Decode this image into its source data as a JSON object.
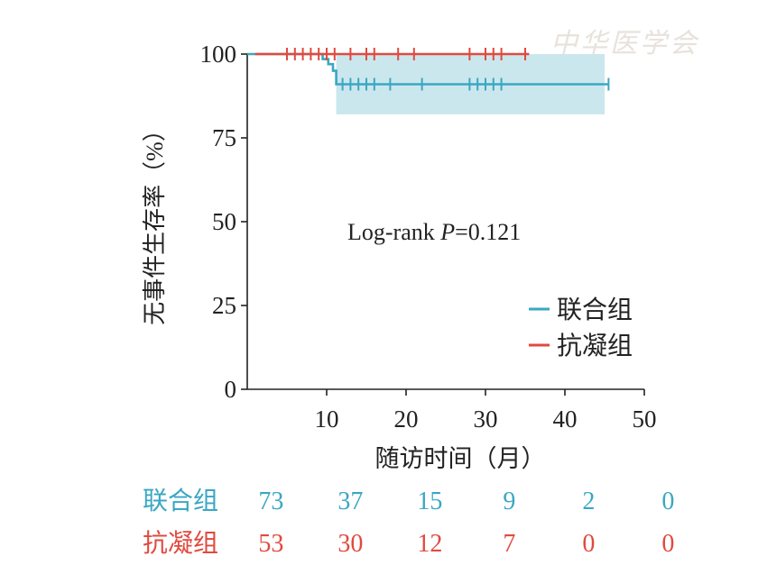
{
  "watermark": "中华医学会",
  "chart_data": {
    "type": "line",
    "chart_subtype": "kaplan-meier",
    "ylabel": "无事件生存率（%）",
    "xlabel": "随访时间（月）",
    "xlim": [
      0,
      50
    ],
    "ylim": [
      0,
      100
    ],
    "xticks": [
      10,
      20,
      30,
      40,
      50
    ],
    "yticks": [
      0,
      25,
      50,
      75,
      100
    ],
    "annotation": {
      "prefix": "Log-rank ",
      "p_symbol": "P",
      "p_value": "=0.121"
    },
    "legend_position": "right",
    "series": [
      {
        "name": "联合组",
        "color": "#3aa7c3",
        "steps": [
          [
            0,
            100
          ],
          [
            9.5,
            100
          ],
          [
            9.5,
            98.5
          ],
          [
            10.2,
            98.5
          ],
          [
            10.2,
            97
          ],
          [
            10.8,
            97
          ],
          [
            10.8,
            95
          ],
          [
            11.2,
            95
          ],
          [
            11.2,
            91
          ],
          [
            45.5,
            91
          ]
        ],
        "censor_times": [
          12,
          13,
          14,
          15,
          16,
          18,
          22,
          28,
          29,
          30,
          31,
          32,
          45.5
        ],
        "ci": {
          "x_start": 11.2,
          "x_end": 45,
          "lower": 82,
          "upper": 100
        }
      },
      {
        "name": "抗凝组",
        "color": "#e04a3f",
        "steps": [
          [
            1,
            100
          ],
          [
            35.5,
            100
          ]
        ],
        "censor_times": [
          5,
          6,
          7,
          8,
          9,
          10,
          11,
          13,
          15,
          16,
          19,
          21,
          28,
          30,
          31,
          32,
          35
        ]
      }
    ],
    "risk_table": {
      "x": [
        3,
        13,
        23,
        33,
        43,
        53
      ],
      "rows": [
        {
          "label": "联合组",
          "color": "#3aa7c3",
          "values": [
            "73",
            "37",
            "15",
            "9",
            "2",
            "0"
          ]
        },
        {
          "label": "抗凝组",
          "color": "#e04a3f",
          "values": [
            "53",
            "30",
            "12",
            "7",
            "0",
            "0"
          ]
        }
      ]
    }
  }
}
